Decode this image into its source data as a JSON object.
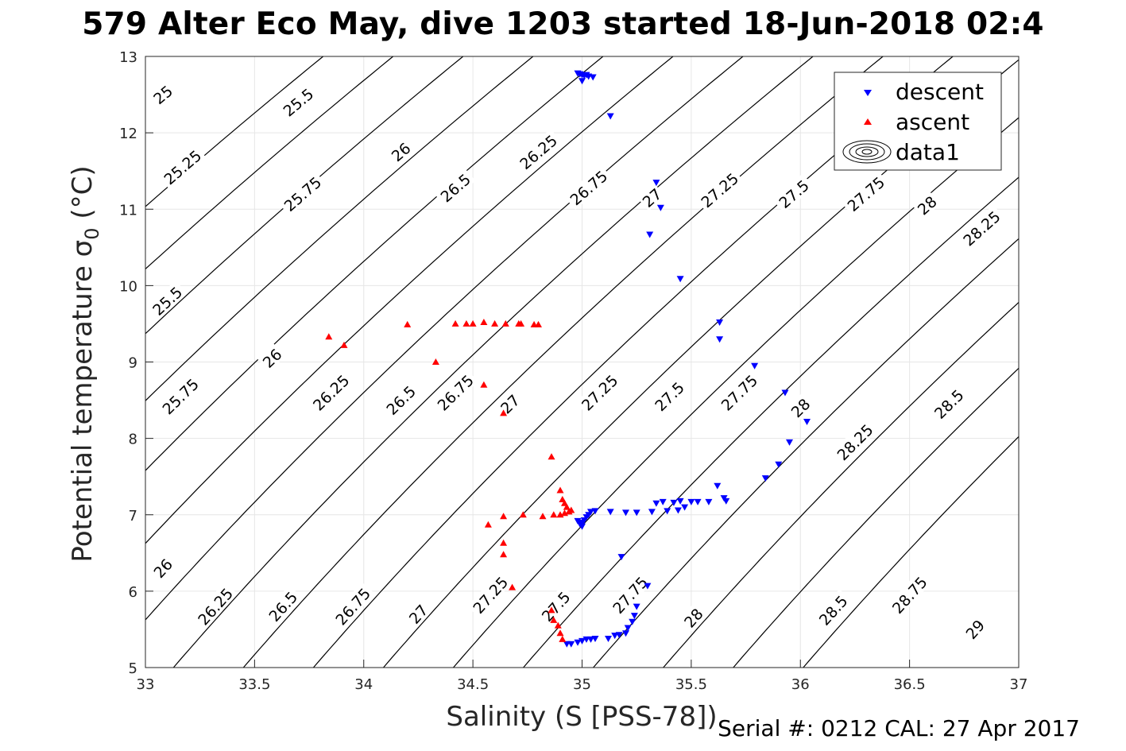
{
  "title": "579 Alter Eco May, dive 1203 started 18-Jun-2018 02:4",
  "footer": "Serial #: 0212  CAL: 27 Apr 2017",
  "chart_data": {
    "type": "scatter",
    "xlabel": "Salinity (S [PSS-78])",
    "ylabel": "Potential temperature σ",
    "ylabel_sub": "0",
    "ylabel_unit": " (°C)",
    "xlim": [
      33,
      37
    ],
    "ylim": [
      5,
      13
    ],
    "xticks": [
      33,
      33.5,
      34,
      34.5,
      35,
      35.5,
      36,
      36.5,
      37
    ],
    "xtick_labels": [
      "33",
      "33.5",
      "34",
      "34.5",
      "35",
      "35.5",
      "36",
      "36.5",
      "37"
    ],
    "yticks": [
      5,
      6,
      7,
      8,
      9,
      10,
      11,
      12,
      13
    ],
    "ytick_labels": [
      "5",
      "6",
      "7",
      "8",
      "9",
      "10",
      "11",
      "12",
      "13"
    ],
    "grid": true,
    "legend_position": "top-right",
    "legend": [
      {
        "label": "descent",
        "marker": "triangle-down",
        "color": "#0000ff"
      },
      {
        "label": "ascent",
        "marker": "triangle-up",
        "color": "#ff0000"
      },
      {
        "label": "data1",
        "marker": "contour",
        "color": "#000000"
      }
    ],
    "contour_levels": [
      25,
      25.25,
      25.5,
      25.75,
      26,
      26.25,
      26.5,
      26.75,
      27,
      27.25,
      27.5,
      27.75,
      28,
      28.25,
      28.5,
      28.75,
      29
    ],
    "contour_labels": [
      {
        "text": "25",
        "x": 33.08,
        "y": 12.5
      },
      {
        "text": "25.5",
        "x": 33.7,
        "y": 12.4
      },
      {
        "text": "25.25",
        "x": 33.17,
        "y": 11.55
      },
      {
        "text": "26",
        "x": 34.17,
        "y": 11.75
      },
      {
        "text": "25.75",
        "x": 33.72,
        "y": 11.2
      },
      {
        "text": "26.25",
        "x": 34.8,
        "y": 11.75
      },
      {
        "text": "26.5",
        "x": 34.42,
        "y": 11.28
      },
      {
        "text": "26.75",
        "x": 35.03,
        "y": 11.28
      },
      {
        "text": "27",
        "x": 35.32,
        "y": 11.15
      },
      {
        "text": "27.25",
        "x": 35.63,
        "y": 11.25
      },
      {
        "text": "27.5",
        "x": 35.97,
        "y": 11.2
      },
      {
        "text": "27.75",
        "x": 36.3,
        "y": 11.2
      },
      {
        "text": "28",
        "x": 36.58,
        "y": 11.05
      },
      {
        "text": "28.25",
        "x": 36.83,
        "y": 10.75
      },
      {
        "text": "25.5",
        "x": 33.1,
        "y": 9.8
      },
      {
        "text": "26",
        "x": 33.58,
        "y": 9.05
      },
      {
        "text": "25.75",
        "x": 33.16,
        "y": 8.55
      },
      {
        "text": "26.25",
        "x": 33.85,
        "y": 8.6
      },
      {
        "text": "26.5",
        "x": 34.17,
        "y": 8.5
      },
      {
        "text": "26.75",
        "x": 34.42,
        "y": 8.6
      },
      {
        "text": "27",
        "x": 34.67,
        "y": 8.45
      },
      {
        "text": "27.25",
        "x": 35.08,
        "y": 8.6
      },
      {
        "text": "27.5",
        "x": 35.4,
        "y": 8.55
      },
      {
        "text": "27.75",
        "x": 35.72,
        "y": 8.6
      },
      {
        "text": "28",
        "x": 36.0,
        "y": 8.4
      },
      {
        "text": "28.25",
        "x": 36.25,
        "y": 7.95
      },
      {
        "text": "28.5",
        "x": 36.68,
        "y": 8.45
      },
      {
        "text": "26",
        "x": 33.08,
        "y": 6.3
      },
      {
        "text": "26.25",
        "x": 33.32,
        "y": 5.8
      },
      {
        "text": "26.5",
        "x": 33.63,
        "y": 5.8
      },
      {
        "text": "26.75",
        "x": 33.95,
        "y": 5.8
      },
      {
        "text": "27",
        "x": 34.25,
        "y": 5.7
      },
      {
        "text": "27.25",
        "x": 34.58,
        "y": 5.95
      },
      {
        "text": "27.5",
        "x": 34.88,
        "y": 5.8
      },
      {
        "text": "27.75",
        "x": 35.22,
        "y": 5.95
      },
      {
        "text": "28",
        "x": 35.51,
        "y": 5.65
      },
      {
        "text": "28.5",
        "x": 36.15,
        "y": 5.75
      },
      {
        "text": "28.75",
        "x": 36.5,
        "y": 5.95
      },
      {
        "text": "29",
        "x": 36.8,
        "y": 5.5
      }
    ],
    "series": [
      {
        "name": "descent",
        "color": "#0000ff",
        "marker": "triangle-down",
        "points": [
          [
            34.98,
            12.78
          ],
          [
            34.99,
            12.77
          ],
          [
            35.0,
            12.76
          ],
          [
            35.01,
            12.75
          ],
          [
            35.02,
            12.76
          ],
          [
            35.03,
            12.74
          ],
          [
            35.05,
            12.73
          ],
          [
            35.0,
            12.68
          ],
          [
            35.13,
            12.22
          ],
          [
            35.34,
            11.35
          ],
          [
            35.36,
            11.02
          ],
          [
            35.31,
            10.67
          ],
          [
            35.45,
            10.09
          ],
          [
            35.63,
            9.52
          ],
          [
            35.63,
            9.3
          ],
          [
            35.79,
            8.95
          ],
          [
            35.93,
            8.6
          ],
          [
            36.03,
            8.22
          ],
          [
            35.95,
            7.95
          ],
          [
            35.9,
            7.66
          ],
          [
            35.84,
            7.48
          ],
          [
            35.62,
            7.38
          ],
          [
            35.65,
            7.22
          ],
          [
            35.66,
            7.18
          ],
          [
            35.58,
            7.17
          ],
          [
            35.53,
            7.17
          ],
          [
            35.5,
            7.17
          ],
          [
            35.45,
            7.18
          ],
          [
            35.42,
            7.16
          ],
          [
            35.37,
            7.17
          ],
          [
            35.34,
            7.15
          ],
          [
            35.47,
            7.1
          ],
          [
            35.44,
            7.06
          ],
          [
            35.39,
            7.05
          ],
          [
            35.32,
            7.04
          ],
          [
            35.25,
            7.03
          ],
          [
            35.2,
            7.03
          ],
          [
            35.13,
            7.04
          ],
          [
            35.06,
            7.05
          ],
          [
            35.04,
            7.04
          ],
          [
            35.03,
            7.0
          ],
          [
            35.02,
            6.97
          ],
          [
            35.01,
            6.93
          ],
          [
            35.0,
            6.9
          ],
          [
            34.98,
            6.92
          ],
          [
            34.99,
            6.88
          ],
          [
            35.0,
            6.85
          ],
          [
            35.18,
            6.45
          ],
          [
            35.3,
            6.07
          ],
          [
            35.25,
            5.8
          ],
          [
            35.24,
            5.68
          ],
          [
            35.23,
            5.6
          ],
          [
            35.21,
            5.52
          ],
          [
            35.2,
            5.45
          ],
          [
            35.17,
            5.43
          ],
          [
            35.15,
            5.42
          ],
          [
            35.12,
            5.38
          ],
          [
            35.06,
            5.38
          ],
          [
            35.04,
            5.37
          ],
          [
            35.02,
            5.37
          ],
          [
            35.0,
            5.35
          ],
          [
            34.98,
            5.33
          ],
          [
            34.95,
            5.31
          ],
          [
            34.93,
            5.31
          ]
        ]
      },
      {
        "name": "ascent",
        "color": "#ff0000",
        "marker": "triangle-up",
        "points": [
          [
            33.84,
            9.33
          ],
          [
            33.91,
            9.22
          ],
          [
            34.2,
            9.49
          ],
          [
            34.42,
            9.5
          ],
          [
            34.47,
            9.5
          ],
          [
            34.5,
            9.5
          ],
          [
            34.55,
            9.52
          ],
          [
            34.6,
            9.5
          ],
          [
            34.65,
            9.5
          ],
          [
            34.71,
            9.5
          ],
          [
            34.72,
            9.5
          ],
          [
            34.78,
            9.49
          ],
          [
            34.8,
            9.49
          ],
          [
            34.33,
            9.0
          ],
          [
            34.55,
            8.7
          ],
          [
            34.64,
            8.33
          ],
          [
            34.86,
            7.76
          ],
          [
            34.57,
            6.87
          ],
          [
            34.64,
            6.98
          ],
          [
            34.73,
            7.0
          ],
          [
            34.82,
            6.98
          ],
          [
            34.87,
            7.0
          ],
          [
            34.9,
            7.0
          ],
          [
            34.92,
            7.02
          ],
          [
            34.94,
            7.04
          ],
          [
            34.95,
            7.06
          ],
          [
            34.93,
            7.1
          ],
          [
            34.92,
            7.15
          ],
          [
            34.91,
            7.2
          ],
          [
            34.9,
            7.32
          ],
          [
            34.64,
            6.48
          ],
          [
            34.64,
            6.63
          ],
          [
            34.68,
            6.05
          ],
          [
            34.86,
            5.75
          ],
          [
            34.87,
            5.62
          ],
          [
            34.89,
            5.55
          ],
          [
            34.9,
            5.45
          ],
          [
            34.91,
            5.37
          ]
        ]
      }
    ]
  }
}
